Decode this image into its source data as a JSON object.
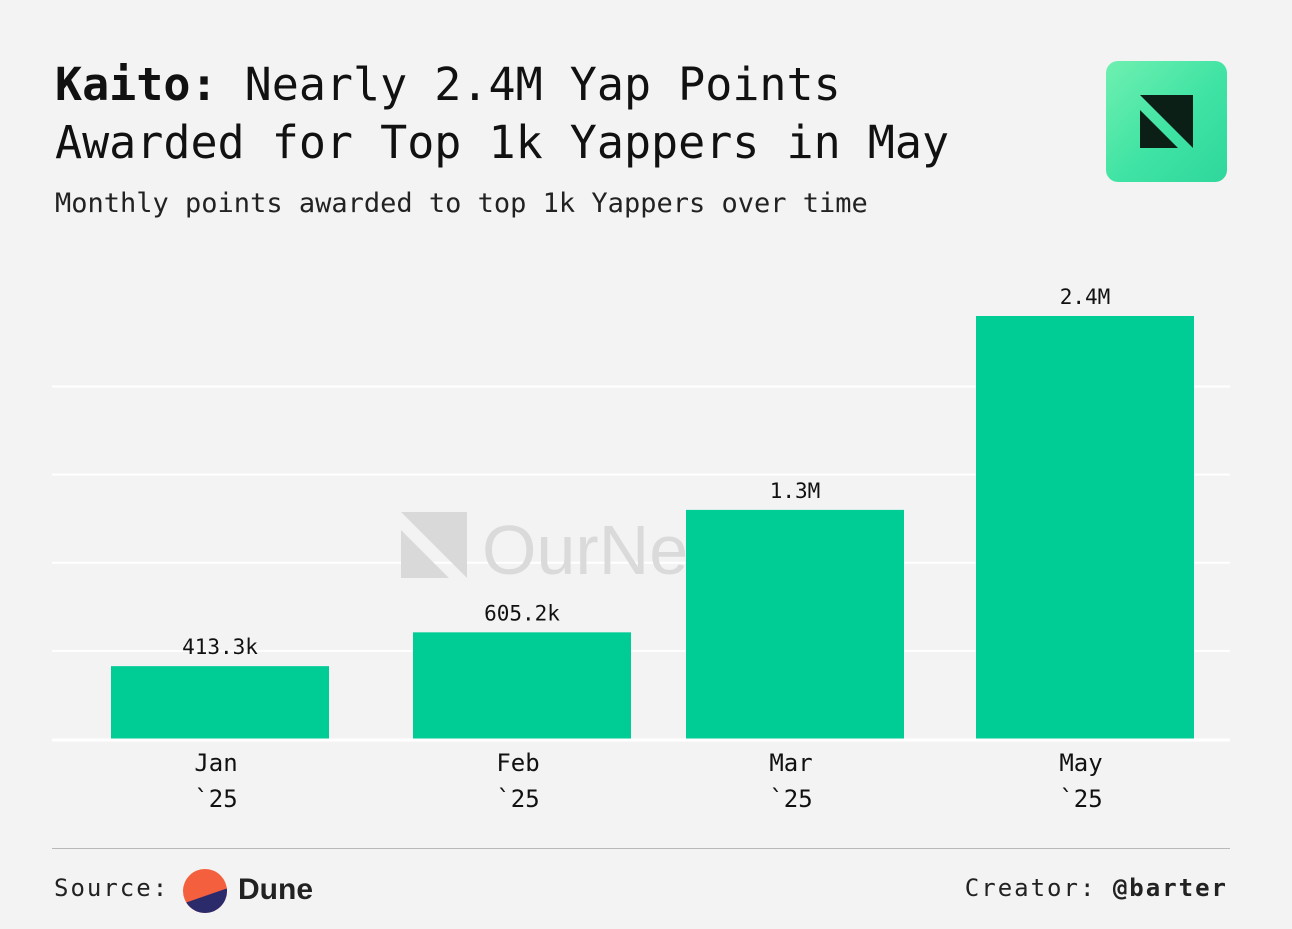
{
  "header": {
    "title_lead": "Kaito:",
    "title_rest": "Nearly 2.4M Yap Points Awarded for Top 1k Yappers in May",
    "subtitle": "Monthly points awarded to top 1k Yappers over time"
  },
  "brand": {
    "logo_icon": "ournetwork-logo-icon",
    "accent": "#00cc96",
    "watermark": "OurNetwork"
  },
  "footer": {
    "source_label": "Source:",
    "source_name": "Dune",
    "creator_label": "Creator:",
    "creator_handle": "@barter"
  },
  "chart_data": {
    "type": "bar",
    "title": "Monthly points awarded to top 1k Yappers over time",
    "xlabel": "",
    "ylabel": "",
    "categories": [
      "Jan `25",
      "Feb `25",
      "Mar `25",
      "May `25"
    ],
    "category_lines": [
      [
        "Jan",
        "`25"
      ],
      [
        "Feb",
        "`25"
      ],
      [
        "Mar",
        "`25"
      ],
      [
        "May",
        "`25"
      ]
    ],
    "values": [
      413300,
      605200,
      1300000,
      2400000
    ],
    "value_labels": [
      "413.3k",
      "605.2k",
      "1.3M",
      "2.4M"
    ],
    "ylim": [
      0,
      2400000
    ],
    "gridlines": [
      0,
      500000,
      1000000,
      1500000,
      2000000
    ],
    "grid": true,
    "bar_color": "#00cc96"
  }
}
